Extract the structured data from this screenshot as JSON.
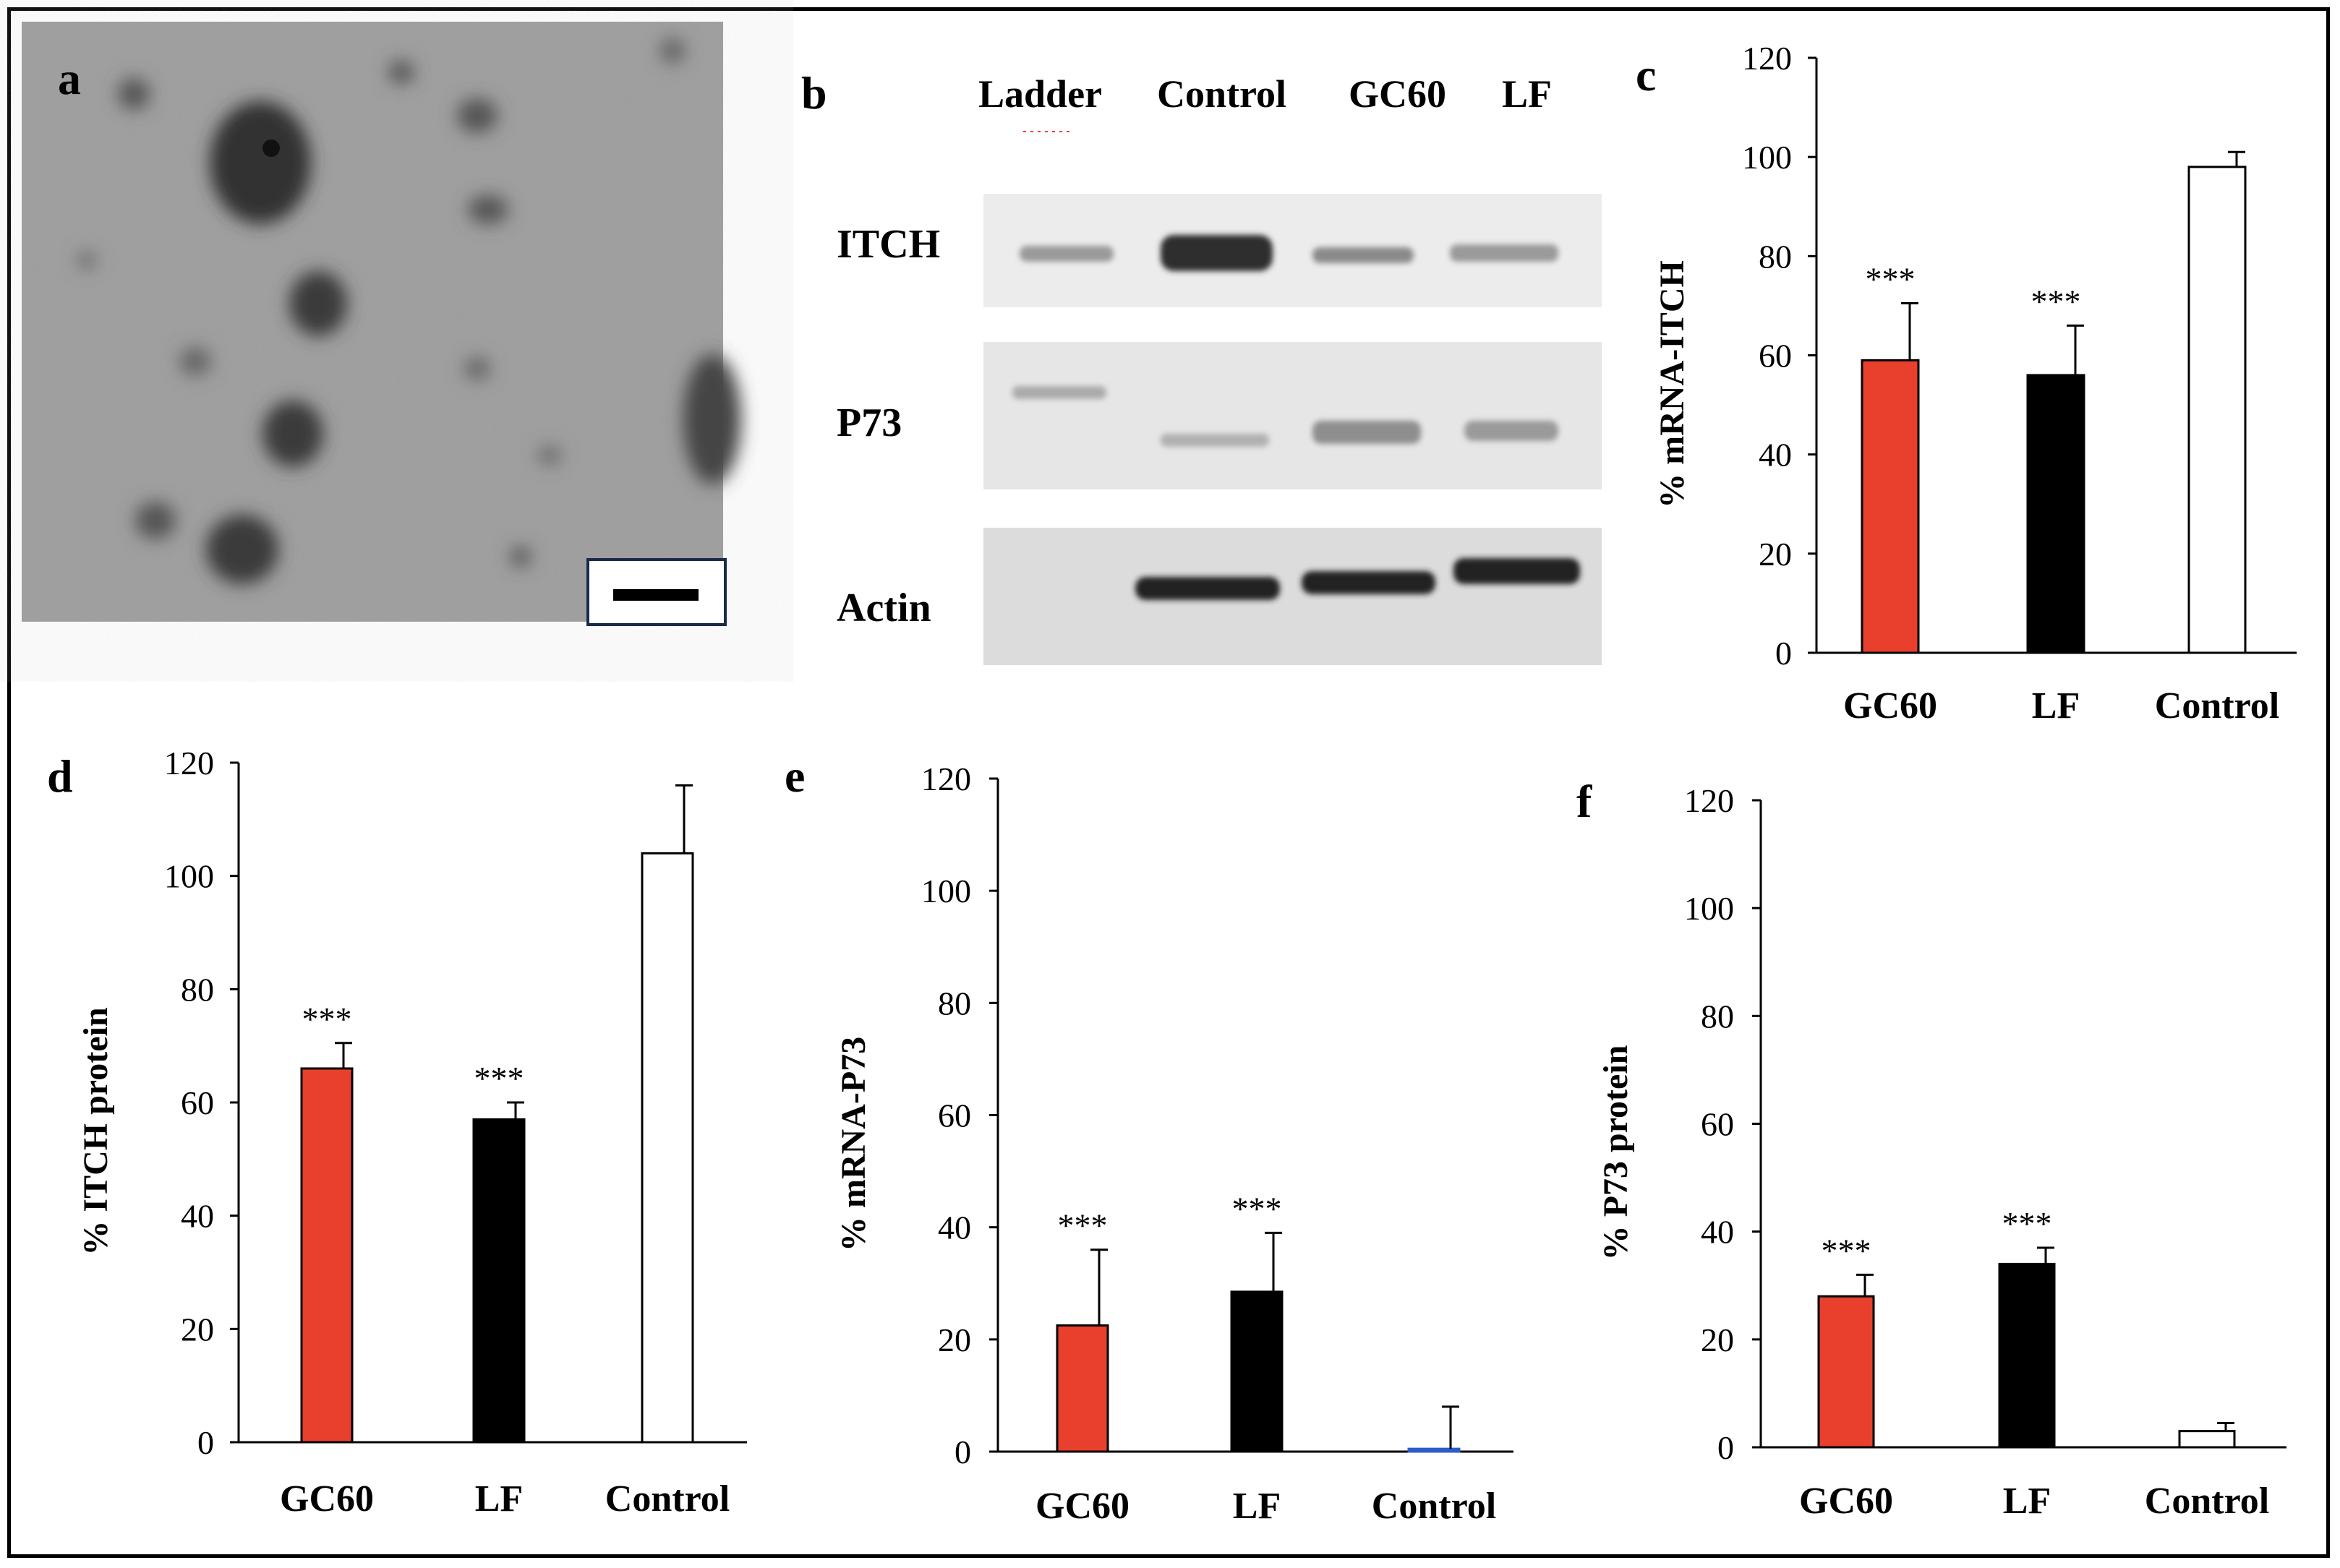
{
  "panels": {
    "a": "a",
    "b": "b",
    "c": "c",
    "d": "d",
    "e": "e",
    "f": "f"
  },
  "blot": {
    "lanes": [
      "Ladder",
      "Control",
      "GC60",
      "LF"
    ],
    "rows": [
      "ITCH",
      "P73",
      "Actin"
    ]
  },
  "colors": {
    "GC60": "#e8402c",
    "LF": "#000000",
    "Control": "#ffffff",
    "control_bar_e": "#2c5cc8"
  },
  "chart_data": [
    {
      "id": "c",
      "type": "bar",
      "categories": [
        "GC60",
        "LF",
        "Control"
      ],
      "values": [
        59,
        56,
        98
      ],
      "errors": [
        11.5,
        10,
        3
      ],
      "significance": [
        "***",
        "***",
        ""
      ],
      "ylabel": "% mRNA-ITCH",
      "ylim": [
        0,
        120
      ],
      "yticks": [
        0,
        20,
        40,
        60,
        80,
        100,
        120
      ]
    },
    {
      "id": "d",
      "type": "bar",
      "categories": [
        "GC60",
        "LF",
        "Control"
      ],
      "values": [
        66,
        57,
        104
      ],
      "errors": [
        4.5,
        3,
        12
      ],
      "significance": [
        "***",
        "***",
        ""
      ],
      "ylabel": "% ITCH protein",
      "ylim": [
        0,
        120
      ],
      "yticks": [
        0,
        20,
        40,
        60,
        80,
        100,
        120
      ]
    },
    {
      "id": "e",
      "type": "bar",
      "categories": [
        "GC60",
        "LF",
        "Control"
      ],
      "values": [
        22.5,
        28.5,
        0.5
      ],
      "errors": [
        13.5,
        10.5,
        7.5
      ],
      "significance": [
        "***",
        "***",
        ""
      ],
      "ylabel": "% mRNA-P73",
      "ylim": [
        0,
        120
      ],
      "yticks": [
        0,
        20,
        40,
        60,
        80,
        100,
        120
      ]
    },
    {
      "id": "f",
      "type": "bar",
      "categories": [
        "GC60",
        "LF",
        "Control"
      ],
      "values": [
        28,
        34,
        3
      ],
      "errors": [
        4,
        3,
        1.5
      ],
      "significance": [
        "***",
        "***",
        ""
      ],
      "ylabel": "% P73 protein",
      "ylim": [
        0,
        120
      ],
      "yticks": [
        0,
        20,
        40,
        60,
        80,
        100,
        120
      ]
    }
  ]
}
